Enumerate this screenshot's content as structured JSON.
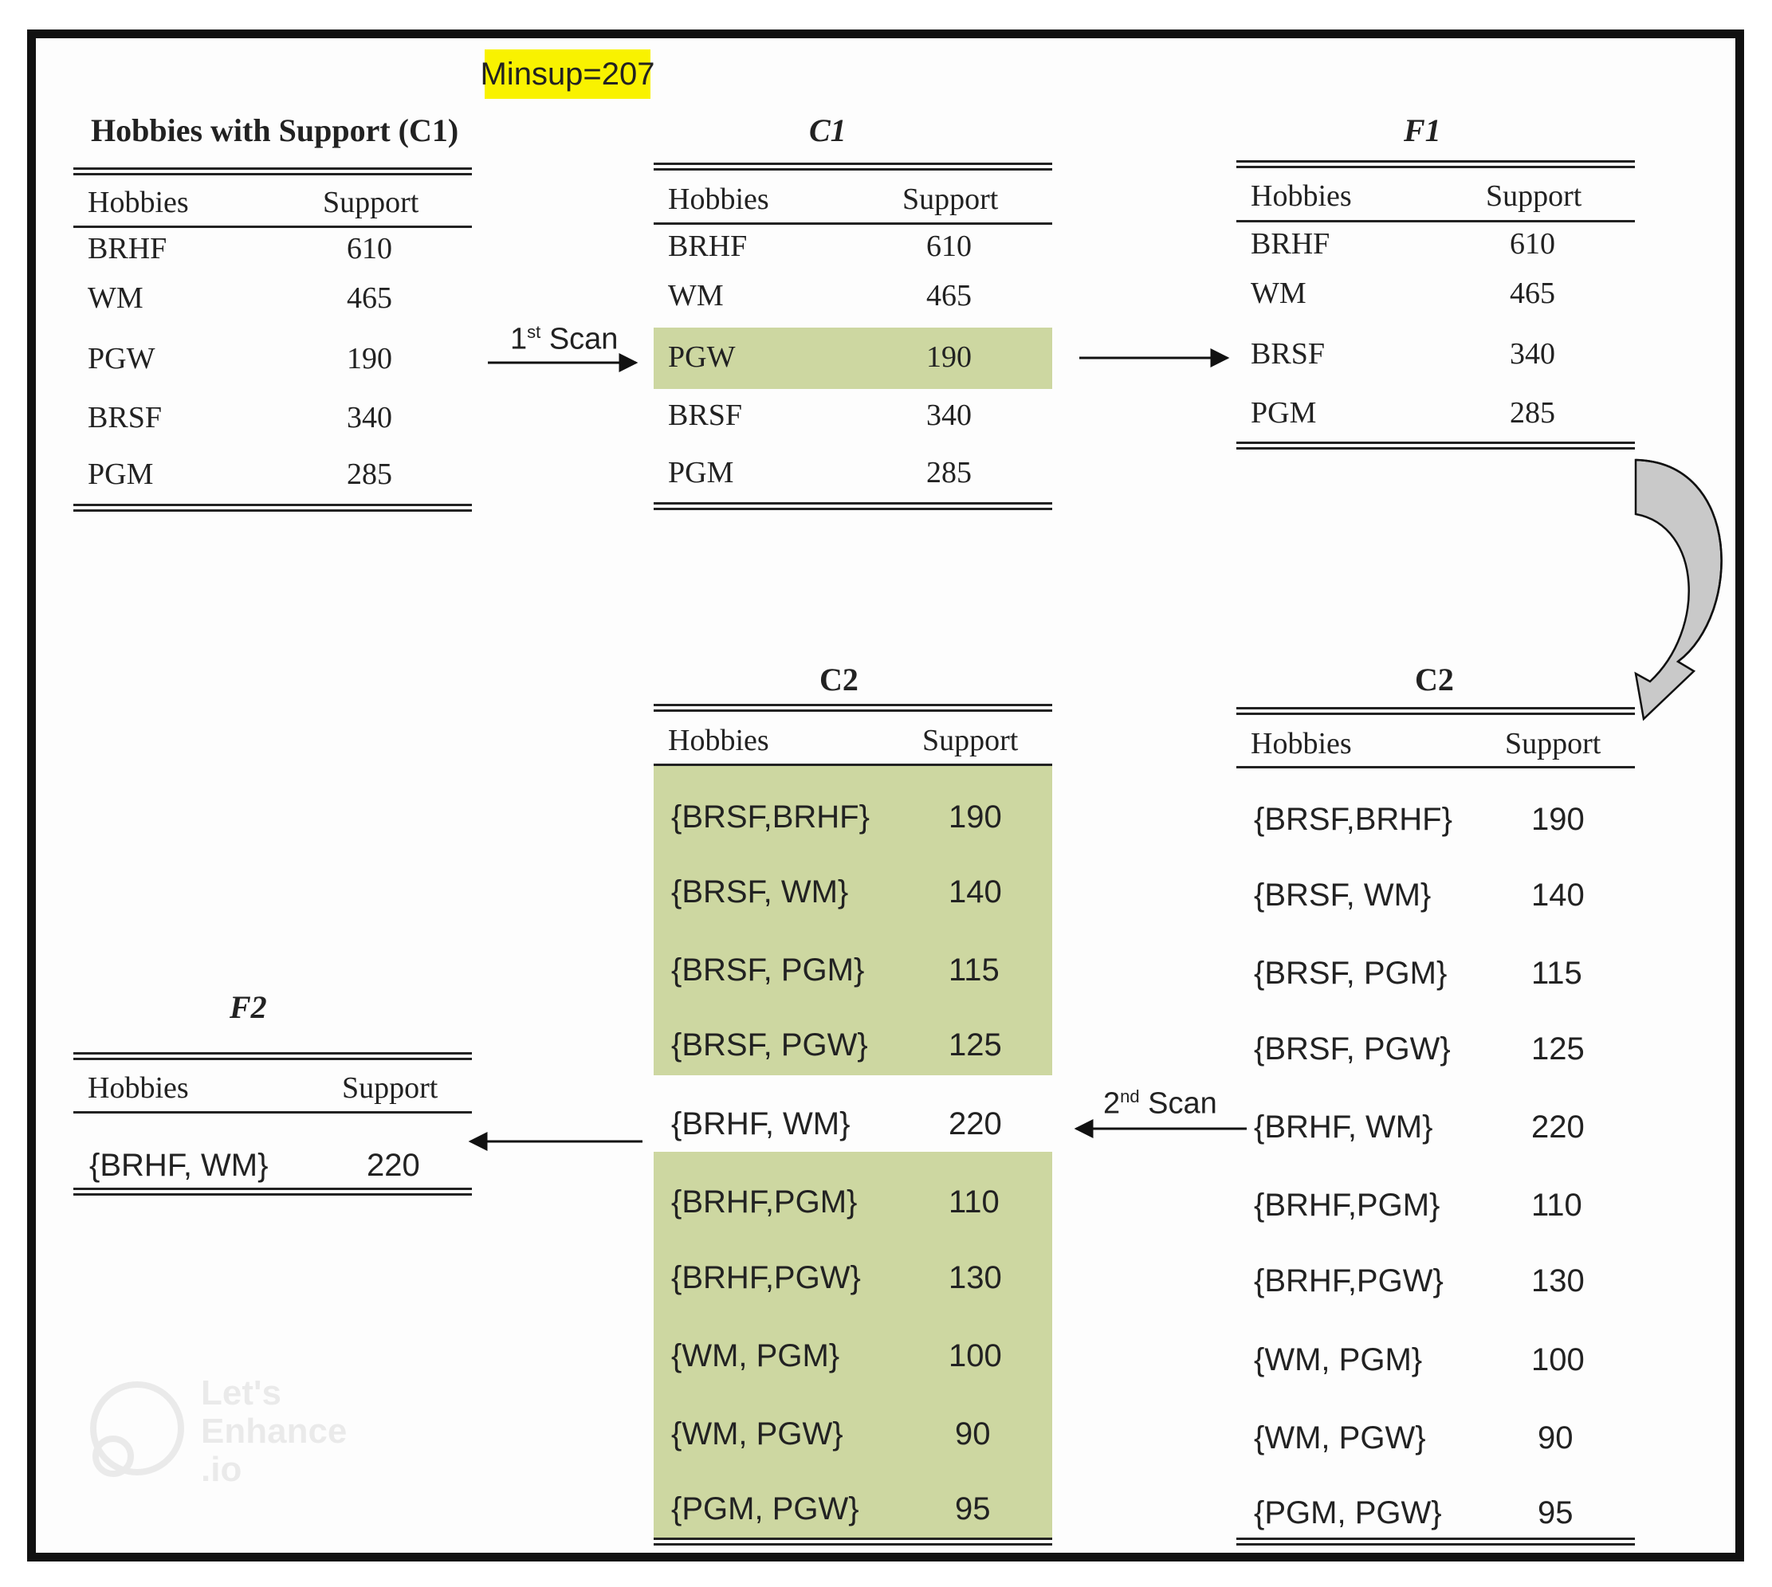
{
  "minsup": "Minsup=207",
  "headers": {
    "col1": "Hobbies",
    "col2": "Support"
  },
  "table_c1_left": {
    "title": "Hobbies with Support (C1)",
    "rows": [
      [
        "BRHF",
        "610"
      ],
      [
        "WM",
        "465"
      ],
      [
        "PGW",
        "190"
      ],
      [
        "BRSF",
        "340"
      ],
      [
        "PGM",
        "285"
      ]
    ]
  },
  "table_c1": {
    "title": "C1",
    "rows": [
      [
        "BRHF",
        "610"
      ],
      [
        "WM",
        "465"
      ],
      [
        "PGW",
        "190"
      ],
      [
        "BRSF",
        "340"
      ],
      [
        "PGM",
        "285"
      ]
    ]
  },
  "table_f1": {
    "title": "F1",
    "rows": [
      [
        "BRHF",
        "610"
      ],
      [
        "WM",
        "465"
      ],
      [
        "BRSF",
        "340"
      ],
      [
        "PGM",
        "285"
      ]
    ]
  },
  "table_c2_mid": {
    "title": "C2",
    "rows": [
      [
        "{BRSF,BRHF}",
        "190"
      ],
      [
        "{BRSF, WM}",
        "140"
      ],
      [
        "{BRSF, PGM}",
        "115"
      ],
      [
        "{BRSF, PGW}",
        "125"
      ],
      [
        "{BRHF, WM}",
        "220"
      ],
      [
        "{BRHF,PGM}",
        "110"
      ],
      [
        "{BRHF,PGW}",
        "130"
      ],
      [
        "{WM, PGM}",
        "100"
      ],
      [
        "{WM, PGW}",
        "90"
      ],
      [
        "{PGM, PGW}",
        "95"
      ]
    ]
  },
  "table_c2_right": {
    "title": "C2",
    "rows": [
      [
        "{BRSF,BRHF}",
        "190"
      ],
      [
        "{BRSF, WM}",
        "140"
      ],
      [
        "{BRSF, PGM}",
        "115"
      ],
      [
        "{BRSF, PGW}",
        "125"
      ],
      [
        "{BRHF, WM}",
        "220"
      ],
      [
        "{BRHF,PGM}",
        "110"
      ],
      [
        "{BRHF,PGW}",
        "130"
      ],
      [
        "{WM, PGM}",
        "100"
      ],
      [
        "{WM, PGW}",
        "90"
      ],
      [
        "{PGM, PGW}",
        "95"
      ]
    ]
  },
  "table_f2": {
    "title": "F2",
    "rows": [
      [
        "{BRHF, WM}",
        "220"
      ]
    ]
  },
  "scan1": {
    "num": "1",
    "sup": "st",
    "word": " Scan"
  },
  "scan2": {
    "num": "2",
    "sup": "nd",
    "word": " Scan"
  },
  "colors": {
    "highlight": "#cdd7a1",
    "minsup_bg": "#f9f200",
    "frame": "#111111"
  }
}
